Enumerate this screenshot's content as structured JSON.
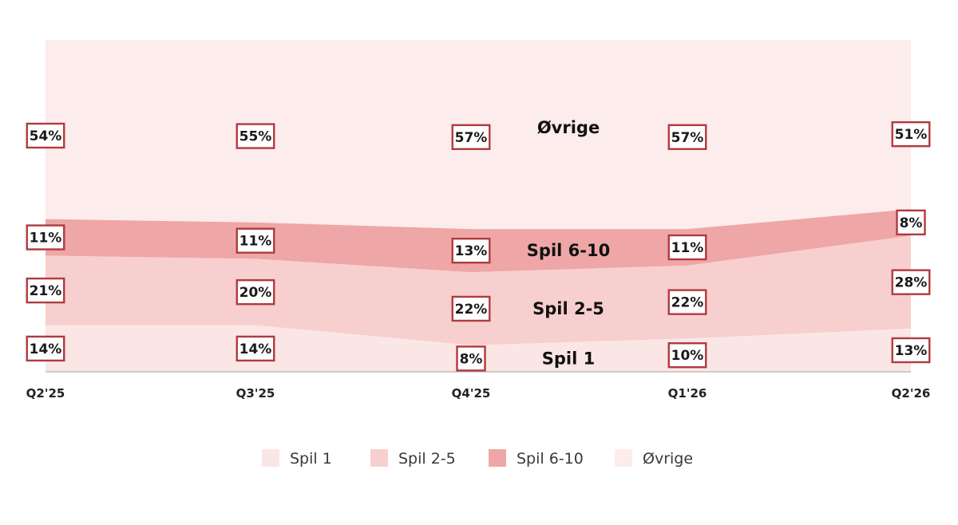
{
  "chart_data": {
    "type": "area",
    "categories": [
      "Q2'25",
      "Q3'25",
      "Q4'25",
      "Q1'26",
      "Q2'26"
    ],
    "series": [
      {
        "name": "Spil 1",
        "values": [
          14,
          14,
          8,
          10,
          13
        ],
        "labels": [
          "14%",
          "14%",
          "8%",
          "10%",
          "13%"
        ],
        "color": "#fbe6e6"
      },
      {
        "name": "Spil 2-5",
        "values": [
          21,
          20,
          22,
          22,
          28
        ],
        "labels": [
          "21%",
          "20%",
          "22%",
          "22%",
          "28%"
        ],
        "color": "#f8cfcf"
      },
      {
        "name": "Spil 6-10",
        "values": [
          11,
          11,
          13,
          11,
          8
        ],
        "labels": [
          "11%",
          "11%",
          "13%",
          "11%",
          "8%"
        ],
        "color": "#efa6a6"
      },
      {
        "name": "Øvrige",
        "values": [
          54,
          55,
          57,
          57,
          51
        ],
        "labels": [
          "54%",
          "55%",
          "57%",
          "57%",
          "51%"
        ],
        "color": "#fdecec"
      }
    ],
    "band_labels": [
      "Spil 1",
      "Spil 2-5",
      "Spil 6-10",
      "Øvrige"
    ],
    "ylim": [
      0,
      100
    ],
    "grid": false,
    "legend_position": "bottom",
    "title": "",
    "xlabel": "",
    "ylabel": ""
  }
}
